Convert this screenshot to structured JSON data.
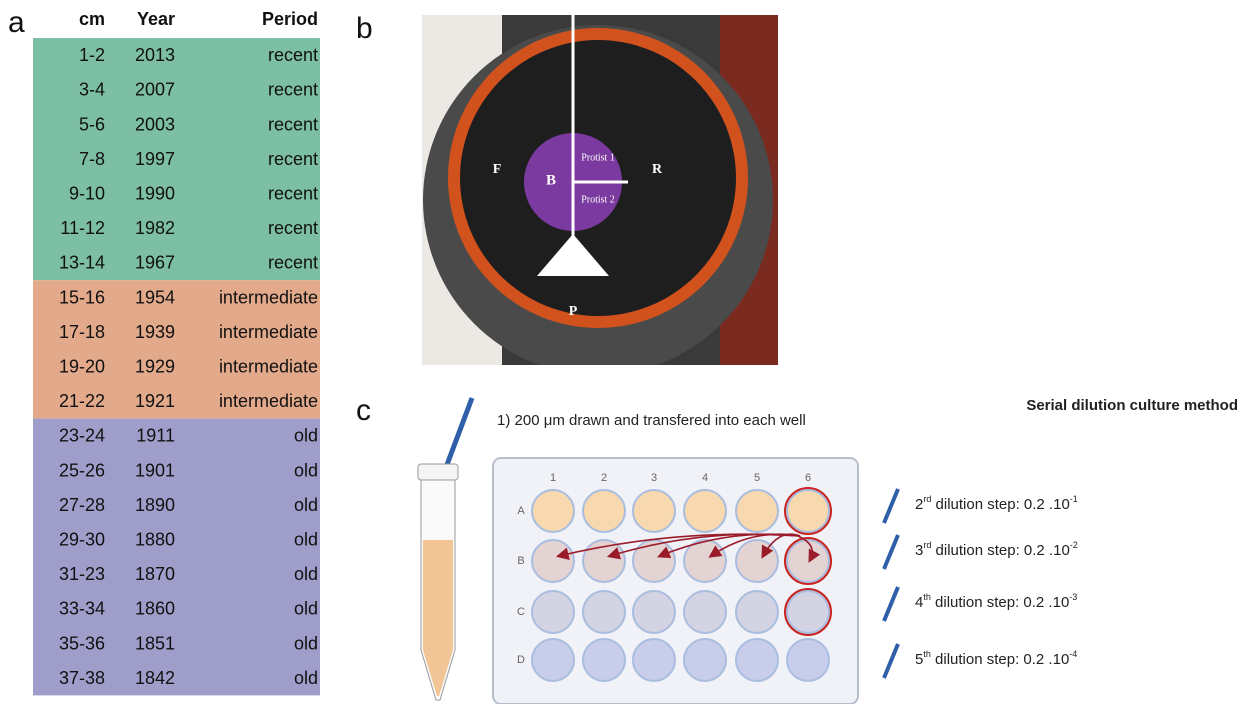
{
  "panels": {
    "a": "a",
    "b": "b",
    "c": "c"
  },
  "table": {
    "header": [
      "cm",
      "Year",
      "Period"
    ],
    "row_groups": [
      {
        "color": "#7cbfa5",
        "rows": [
          [
            "1-2",
            "2013",
            "recent"
          ],
          [
            "3-4",
            "2007",
            "recent"
          ],
          [
            "5-6",
            "2003",
            "recent"
          ],
          [
            "7-8",
            "1997",
            "recent"
          ],
          [
            "9-10",
            "1990",
            "recent"
          ],
          [
            "11-12",
            "1982",
            "recent"
          ],
          [
            "13-14",
            "1967",
            "recent"
          ]
        ]
      },
      {
        "color": "#e3a98b",
        "rows": [
          [
            "15-16",
            "1954",
            "intermediate"
          ],
          [
            "17-18",
            "1939",
            "intermediate"
          ],
          [
            "19-20",
            "1929",
            "intermediate"
          ],
          [
            "21-22",
            "1921",
            "intermediate"
          ]
        ]
      },
      {
        "color": "#9f9ecb",
        "rows": [
          [
            "23-24",
            "1911",
            "old"
          ],
          [
            "25-26",
            "1901",
            "old"
          ],
          [
            "27-28",
            "1890",
            "old"
          ],
          [
            "29-30",
            "1880",
            "old"
          ],
          [
            "31-23",
            "1870",
            "old"
          ],
          [
            "33-34",
            "1860",
            "old"
          ],
          [
            "35-36",
            "1851",
            "old"
          ],
          [
            "37-38",
            "1842",
            "old"
          ]
        ]
      }
    ]
  },
  "photo": {
    "labels": {
      "F": "F",
      "B": "B",
      "R": "R",
      "P": "P",
      "protist1": "Protist 1",
      "protist2": "Protist 2"
    }
  },
  "diagram": {
    "title": "Serial dilution culture method",
    "step1": "1) 200 μm drawn and transfered into each well",
    "columns": [
      "1",
      "2",
      "3",
      "4",
      "5",
      "6"
    ],
    "rows": [
      "A",
      "B",
      "C",
      "D"
    ],
    "steps": [
      {
        "n": "2",
        "sup": "rd",
        "text": " dilution step: 0.2 .10",
        "exp": "-1"
      },
      {
        "n": "3",
        "sup": "rd",
        "text": " dilution step: 0.2 .10",
        "exp": "-2"
      },
      {
        "n": "4",
        "sup": "th",
        "text": " dilution step: 0.2 .10",
        "exp": "-3"
      },
      {
        "n": "5",
        "sup": "th",
        "text": " dilution step: 0.2 .10",
        "exp": "-4"
      }
    ]
  }
}
